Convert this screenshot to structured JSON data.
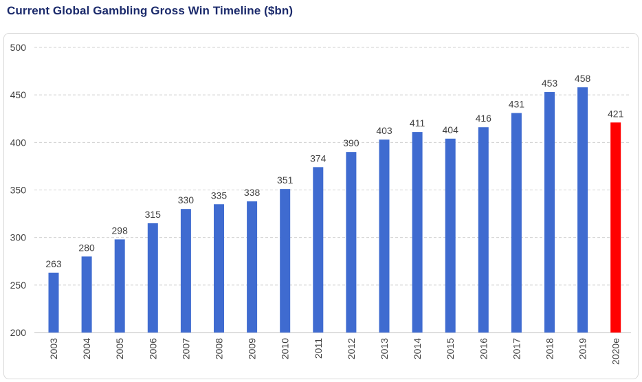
{
  "chart_data": {
    "type": "bar",
    "title": "Current Global Gambling Gross Win Timeline ($bn)",
    "xlabel": "",
    "ylabel": "",
    "ylim": [
      200,
      500
    ],
    "yticks": [
      200,
      250,
      300,
      350,
      400,
      450,
      500
    ],
    "grid": true,
    "categories": [
      "2003",
      "2004",
      "2005",
      "2006",
      "2007",
      "2008",
      "2009",
      "2010",
      "2011",
      "2012",
      "2013",
      "2014",
      "2015",
      "2016",
      "2017",
      "2018",
      "2019",
      "2020e"
    ],
    "values": [
      263,
      280,
      298,
      315,
      330,
      335,
      338,
      351,
      374,
      390,
      403,
      411,
      404,
      416,
      431,
      453,
      458,
      421
    ],
    "colors": {
      "default": "#3f6bd0",
      "highlight": "#ff0000",
      "highlight_category": "2020e",
      "grid": "#d0d0d0",
      "title": "#1b2a6b"
    }
  }
}
